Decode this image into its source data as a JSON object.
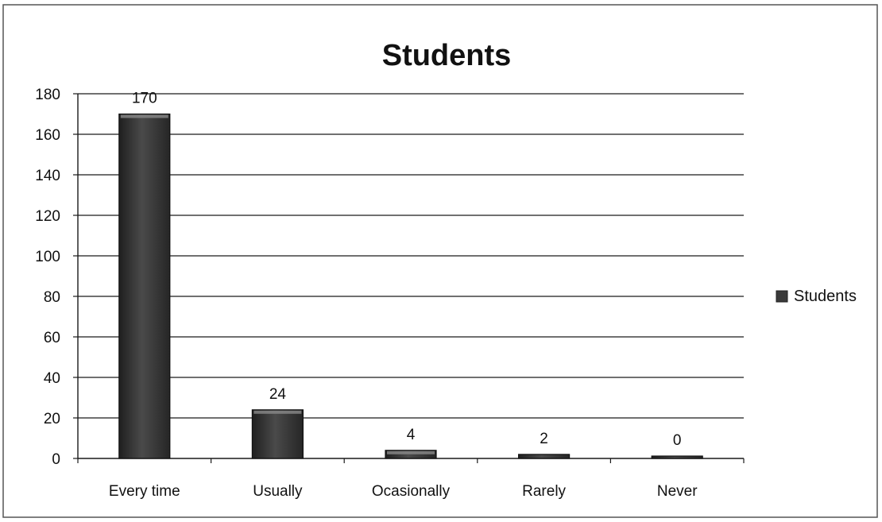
{
  "chart_data": {
    "type": "bar",
    "title": "Students",
    "xlabel": "",
    "ylabel": "",
    "categories": [
      "Every time",
      "Usually",
      "Ocasionally",
      "Rarely",
      "Never"
    ],
    "series": [
      {
        "name": "Students",
        "values": [
          170,
          24,
          4,
          2,
          0
        ],
        "color": "#3a3a3a"
      }
    ],
    "data_labels": [
      "170",
      "24",
      "4",
      "2",
      "0"
    ],
    "ylim": [
      0,
      180
    ],
    "yticks": [
      0,
      20,
      40,
      60,
      80,
      100,
      120,
      140,
      160,
      180
    ],
    "grid": true,
    "legend": {
      "position": "right",
      "entries": [
        "Students"
      ]
    }
  }
}
